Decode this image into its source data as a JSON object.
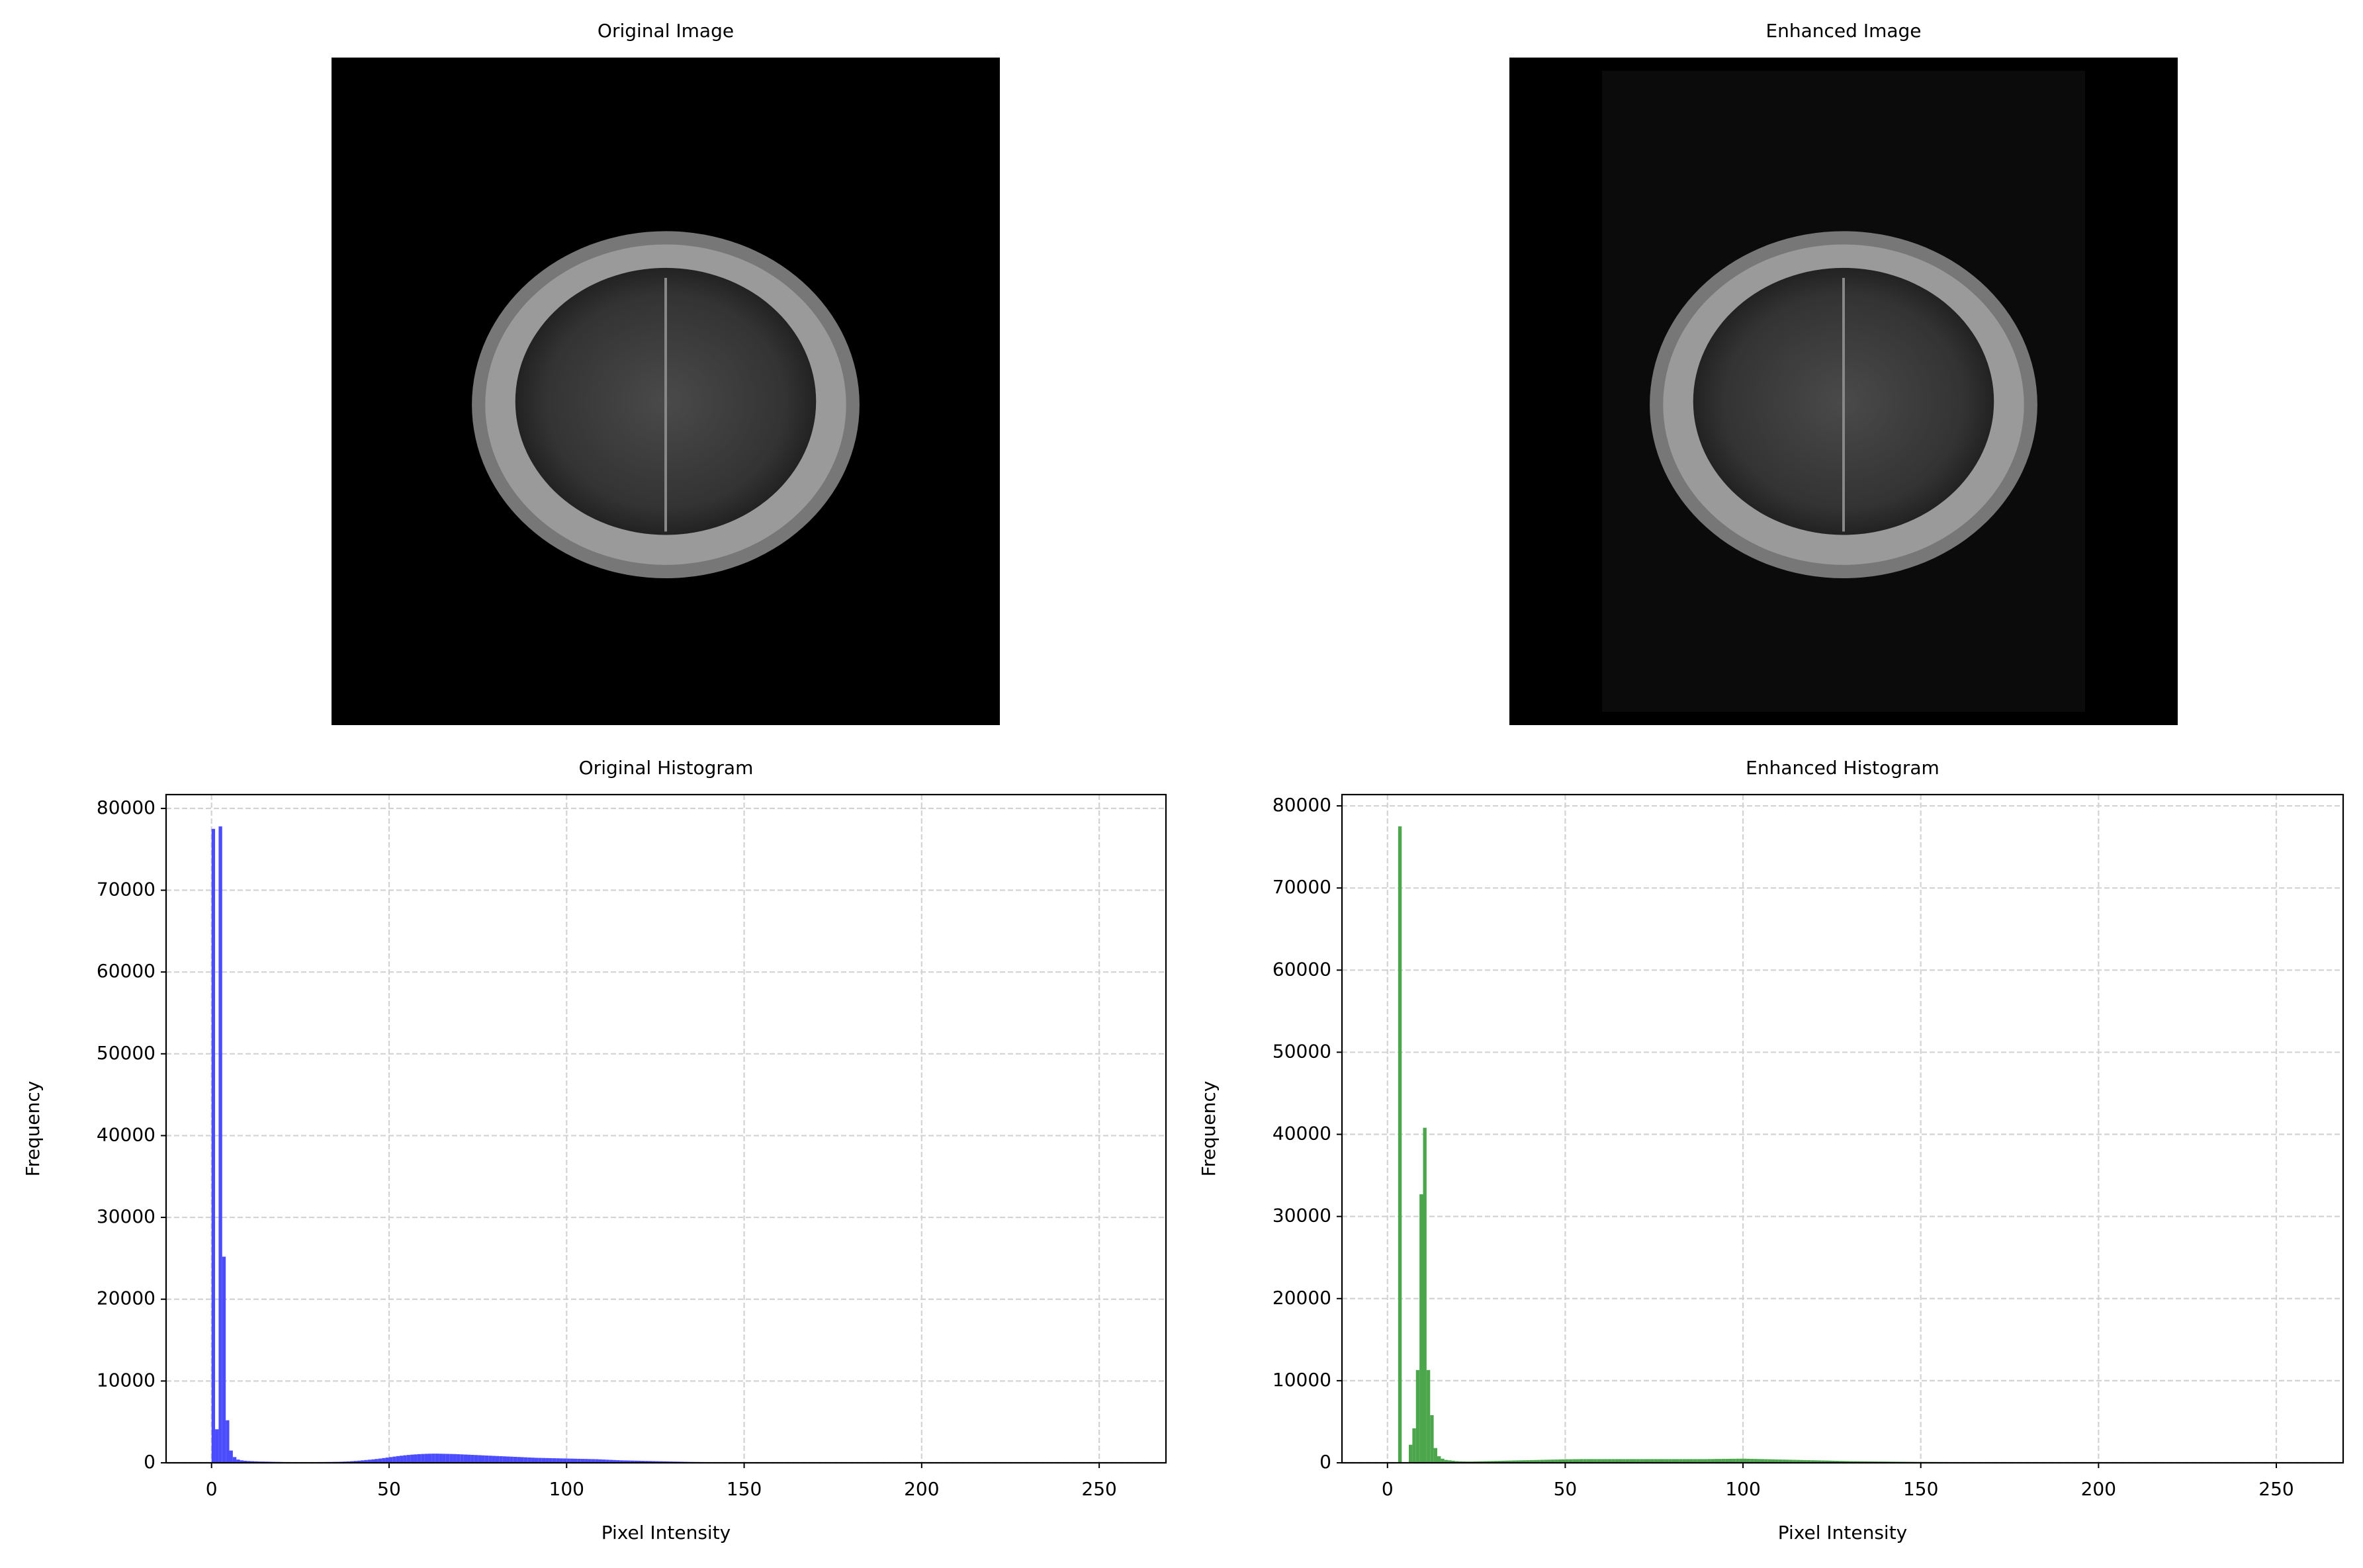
{
  "chart_data": [
    {
      "type": "image",
      "title": "Original Image"
    },
    {
      "type": "image",
      "title": "Enhanced Image"
    },
    {
      "type": "histogram",
      "title": "Original Histogram",
      "x_label": "Pixel Intensity",
      "y_label": "Frequency",
      "color": "#4c4cff",
      "grid": true,
      "xlim": [
        -12.8,
        268.8
      ],
      "ylim": [
        0,
        81690
      ],
      "xticks": [
        0,
        50,
        100,
        150,
        200,
        250
      ],
      "yticks": [
        0,
        10000,
        20000,
        30000,
        40000,
        50000,
        60000,
        70000,
        80000
      ],
      "bins": [
        0,
        1,
        2,
        3,
        4,
        5,
        6,
        7,
        8,
        9,
        10,
        11,
        12,
        13,
        14,
        15,
        16,
        17,
        18,
        19,
        20,
        21,
        22,
        23,
        24,
        25,
        26,
        27,
        28,
        29,
        30,
        31,
        32,
        33,
        34,
        35,
        36,
        37,
        38,
        39,
        40,
        41,
        42,
        43,
        44,
        45,
        46,
        47,
        48,
        49,
        50,
        51,
        52,
        53,
        54,
        55,
        56,
        57,
        58,
        59,
        60,
        61,
        62,
        63,
        64,
        65,
        66,
        67,
        68,
        69,
        70,
        71,
        72,
        73,
        74,
        75,
        76,
        77,
        78,
        79,
        80,
        81,
        82,
        83,
        84,
        85,
        86,
        87,
        88,
        89,
        90,
        91,
        92,
        93,
        94,
        95,
        96,
        97,
        98,
        99,
        100,
        101,
        102,
        103,
        104,
        105,
        106,
        107,
        108,
        109,
        110,
        111,
        112,
        113,
        114,
        115,
        116,
        117,
        118,
        119,
        120,
        121,
        122,
        123,
        124,
        125,
        126,
        127,
        128,
        129,
        130,
        131,
        132,
        133,
        134,
        135,
        136,
        137,
        138,
        139,
        140,
        141,
        142,
        143,
        144,
        145,
        146,
        147,
        148,
        149,
        150,
        151,
        152,
        153,
        154,
        155,
        156,
        157,
        158,
        159,
        160,
        161,
        162,
        163,
        164,
        165,
        166,
        167,
        168,
        169,
        170,
        171,
        172,
        173,
        174,
        175,
        176,
        177,
        178,
        179,
        180,
        181,
        182,
        183,
        184,
        185,
        186,
        187,
        188,
        189,
        190,
        191,
        192,
        193,
        194,
        195,
        196,
        197,
        198,
        199,
        200,
        201,
        202,
        203,
        204,
        205,
        206,
        207,
        208,
        209,
        210,
        211,
        212,
        213,
        214,
        215,
        216,
        217,
        218,
        219,
        220,
        221,
        222,
        223,
        224,
        225,
        226,
        227,
        228,
        229,
        230,
        231,
        232,
        233,
        234,
        235,
        236,
        237,
        238,
        239,
        240,
        241,
        242,
        243,
        244,
        245,
        246,
        247,
        248,
        249,
        250,
        251,
        252,
        253,
        254,
        255,
        256
      ],
      "values": [
        77500,
        4100,
        77800,
        25200,
        5200,
        1500,
        700,
        400,
        300,
        250,
        220,
        200,
        180,
        160,
        150,
        140,
        130,
        120,
        110,
        100,
        90,
        85,
        80,
        75,
        70,
        70,
        70,
        70,
        75,
        80,
        85,
        90,
        95,
        100,
        110,
        120,
        130,
        150,
        170,
        200,
        230,
        260,
        300,
        340,
        380,
        420,
        470,
        520,
        580,
        640,
        700,
        760,
        820,
        870,
        920,
        960,
        1000,
        1030,
        1060,
        1080,
        1100,
        1110,
        1120,
        1120,
        1110,
        1100,
        1090,
        1080,
        1070,
        1050,
        1030,
        1010,
        990,
        970,
        950,
        930,
        910,
        890,
        870,
        850,
        830,
        810,
        790,
        770,
        750,
        730,
        710,
        690,
        670,
        650,
        630,
        610,
        600,
        590,
        580,
        570,
        560,
        550,
        540,
        530,
        520,
        510,
        500,
        490,
        480,
        470,
        460,
        450,
        440,
        420,
        400,
        380,
        360,
        340,
        320,
        300,
        290,
        280,
        270,
        260,
        250,
        240,
        230,
        220,
        210,
        200,
        190,
        180,
        170,
        160,
        150,
        140,
        130,
        120,
        110,
        100,
        95,
        90,
        85,
        80,
        75,
        70,
        65,
        60,
        55,
        50,
        45,
        40,
        35,
        30,
        28,
        26,
        24,
        22,
        20,
        18,
        16,
        14,
        12,
        10,
        8,
        7,
        6,
        5,
        4,
        3,
        3,
        2,
        2,
        1,
        0,
        0,
        0,
        0,
        0,
        0,
        0,
        0,
        0,
        0,
        0,
        0,
        0,
        0,
        0,
        0,
        0,
        0,
        0,
        0,
        0,
        0,
        0,
        0,
        0,
        0,
        0,
        0,
        0,
        0,
        0,
        0,
        0,
        0,
        0,
        0,
        0,
        0,
        0,
        0,
        0,
        0,
        0,
        0,
        0,
        0,
        0,
        0,
        0,
        0,
        0,
        0,
        0,
        0,
        0,
        0,
        0,
        0,
        0,
        0,
        0,
        0,
        0,
        0,
        0,
        0,
        0,
        0,
        0,
        0,
        0,
        0,
        0,
        0,
        0,
        0,
        0,
        0,
        0,
        0,
        0,
        0,
        0,
        0,
        0,
        0
      ]
    },
    {
      "type": "histogram",
      "title": "Enhanced Histogram",
      "x_label": "Pixel Intensity",
      "y_label": "Frequency",
      "color": "#4ca64c",
      "grid": true,
      "xlim": [
        -12.8,
        268.8
      ],
      "ylim": [
        0,
        81375
      ],
      "xticks": [
        0,
        50,
        100,
        150,
        200,
        250
      ],
      "yticks": [
        0,
        10000,
        20000,
        30000,
        40000,
        50000,
        60000,
        70000,
        80000
      ],
      "bins": [
        0,
        1,
        2,
        3,
        4,
        5,
        6,
        7,
        8,
        9,
        10,
        11,
        12,
        13,
        14,
        15,
        16,
        17,
        18,
        19,
        20,
        21,
        22,
        23,
        24,
        25,
        26,
        27,
        28,
        29,
        30,
        31,
        32,
        33,
        34,
        35,
        36,
        37,
        38,
        39,
        40,
        41,
        42,
        43,
        44,
        45,
        46,
        47,
        48,
        49,
        50,
        51,
        52,
        53,
        54,
        55,
        56,
        57,
        58,
        59,
        60,
        61,
        62,
        63,
        64,
        65,
        66,
        67,
        68,
        69,
        70,
        71,
        72,
        73,
        74,
        75,
        76,
        77,
        78,
        79,
        80,
        81,
        82,
        83,
        84,
        85,
        86,
        87,
        88,
        89,
        90,
        91,
        92,
        93,
        94,
        95,
        96,
        97,
        98,
        99,
        100,
        101,
        102,
        103,
        104,
        105,
        106,
        107,
        108,
        109,
        110,
        111,
        112,
        113,
        114,
        115,
        116,
        117,
        118,
        119,
        120,
        121,
        122,
        123,
        124,
        125,
        126,
        127,
        128,
        129,
        130,
        131,
        132,
        133,
        134,
        135,
        136,
        137,
        138,
        139,
        140,
        141,
        142,
        143,
        144,
        145,
        146,
        147,
        148,
        149,
        150,
        151,
        152,
        153,
        154,
        155,
        156,
        157,
        158,
        159,
        160,
        161,
        162,
        163,
        164,
        165,
        166,
        167,
        168,
        169,
        170,
        171,
        172,
        173,
        174,
        175,
        176,
        177,
        178,
        179,
        180,
        181,
        182,
        183,
        184,
        185,
        186,
        187,
        188,
        189,
        190,
        191,
        192,
        193,
        194,
        195,
        196,
        197,
        198,
        199,
        200,
        201,
        202,
        203,
        204,
        205,
        206,
        207,
        208,
        209,
        210,
        211,
        212,
        213,
        214,
        215,
        216,
        217,
        218,
        219,
        220,
        221,
        222,
        223,
        224,
        225,
        226,
        227,
        228,
        229,
        230,
        231,
        232,
        233,
        234,
        235,
        236,
        237,
        238,
        239,
        240,
        241,
        242,
        243,
        244,
        245,
        246,
        247,
        248,
        249,
        250,
        251,
        252,
        253,
        254,
        255,
        256
      ],
      "values": [
        0,
        0,
        0,
        77500,
        0,
        0,
        2200,
        4200,
        11300,
        32700,
        40800,
        11300,
        5800,
        1800,
        800,
        500,
        350,
        300,
        250,
        200,
        180,
        170,
        160,
        160,
        170,
        180,
        190,
        200,
        210,
        220,
        230,
        240,
        250,
        260,
        270,
        280,
        290,
        300,
        310,
        320,
        330,
        340,
        350,
        360,
        370,
        380,
        390,
        400,
        410,
        420,
        430,
        430,
        440,
        440,
        450,
        450,
        450,
        450,
        450,
        450,
        450,
        450,
        450,
        450,
        450,
        450,
        450,
        450,
        450,
        450,
        450,
        450,
        450,
        450,
        450,
        450,
        450,
        450,
        450,
        450,
        450,
        450,
        450,
        450,
        450,
        450,
        450,
        450,
        450,
        450,
        460,
        460,
        470,
        470,
        480,
        480,
        490,
        490,
        500,
        500,
        500,
        490,
        480,
        470,
        460,
        450,
        440,
        430,
        420,
        410,
        400,
        390,
        380,
        370,
        360,
        350,
        340,
        330,
        320,
        310,
        300,
        290,
        280,
        270,
        260,
        250,
        240,
        230,
        220,
        210,
        200,
        195,
        190,
        185,
        180,
        175,
        170,
        165,
        160,
        155,
        150,
        145,
        140,
        135,
        130,
        125,
        120,
        115,
        110,
        105,
        100,
        98,
        96,
        94,
        92,
        90,
        88,
        86,
        84,
        82,
        80,
        78,
        76,
        74,
        72,
        70,
        68,
        66,
        64,
        62,
        60,
        58,
        56,
        54,
        52,
        50,
        48,
        46,
        44,
        42,
        40,
        38,
        36,
        34,
        32,
        30,
        28,
        26,
        24,
        22,
        20,
        19,
        18,
        17,
        16,
        15,
        14,
        13,
        12,
        11,
        10,
        9,
        8,
        7,
        6,
        5,
        5,
        4,
        4,
        3,
        3,
        2,
        2,
        2,
        1,
        1,
        1,
        1,
        1,
        1,
        0,
        0,
        0,
        0,
        0,
        0,
        0,
        0,
        0,
        0,
        0,
        0,
        0,
        0,
        0,
        0,
        0,
        0,
        0,
        0,
        0,
        0,
        0,
        0,
        0,
        0,
        0,
        0,
        0,
        0,
        0,
        0,
        0,
        0,
        0,
        0
      ]
    }
  ]
}
